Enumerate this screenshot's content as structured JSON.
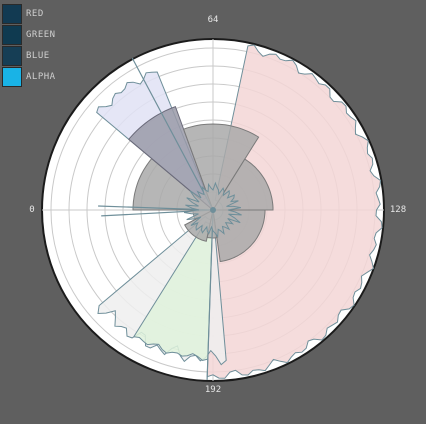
{
  "legend": {
    "items": [
      {
        "label": "RED",
        "color": "#123a52",
        "active": false
      },
      {
        "label": "GREEN",
        "color": "#0f3a50",
        "active": false
      },
      {
        "label": "BLUE",
        "color": "#163e55",
        "active": false
      },
      {
        "label": "ALPHA",
        "color": "#19b3e6",
        "active": true
      }
    ]
  },
  "chart_data": {
    "type": "polar-histogram",
    "angle_labels": [
      "64",
      "128",
      "192",
      "0"
    ],
    "angle_range": [
      0,
      256
    ],
    "colors": {
      "red_fill": "#f3d6d6",
      "green_fill": "#dff2dc",
      "blue_fill": "#e1e2f4",
      "alpha_fill": "#eeeeee",
      "center_gray": "#a9a9a9",
      "grid": "#c9c9c9",
      "outline": "#6f8f9a",
      "disk": "#ffffff"
    }
  }
}
